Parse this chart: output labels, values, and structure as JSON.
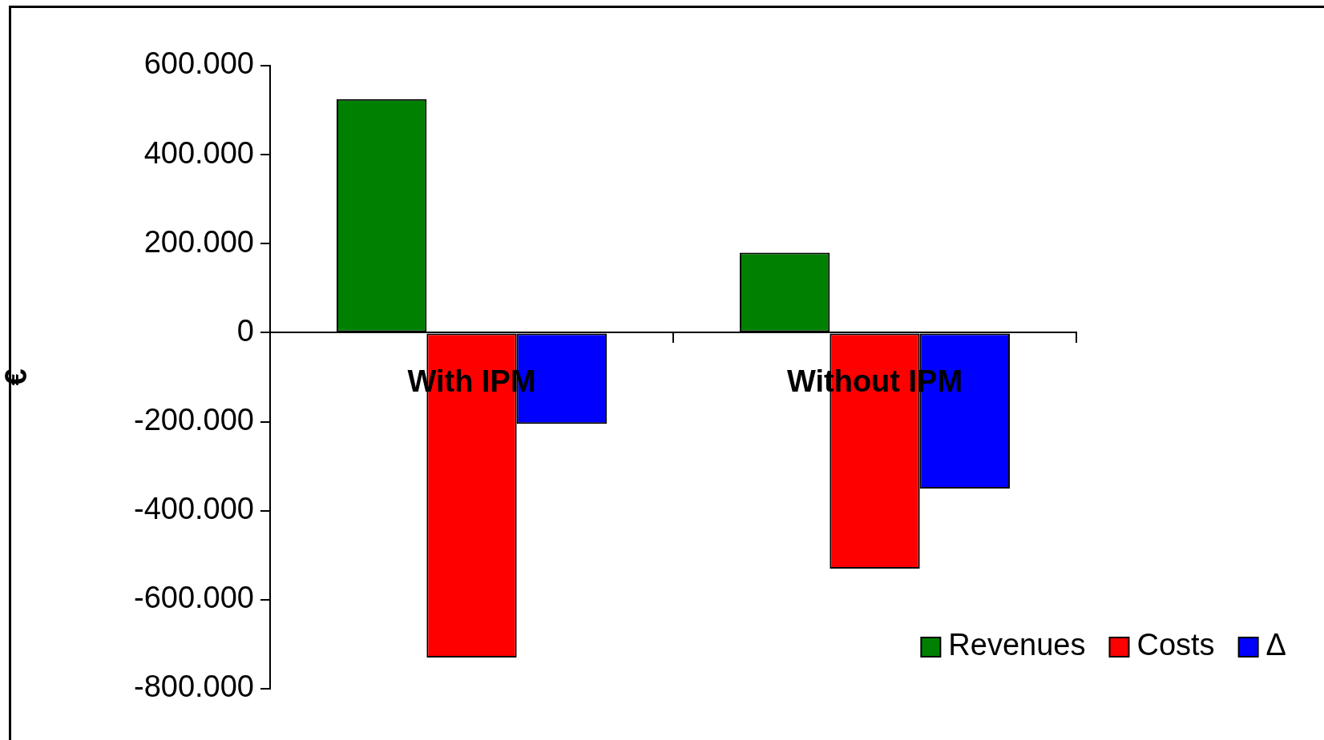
{
  "chart_data": {
    "type": "bar",
    "ylabel": "€",
    "categories": [
      "With IPM",
      "Without IPM"
    ],
    "series": [
      {
        "name": "Revenues",
        "color": "#008000",
        "values": [
          525000,
          180000
        ]
      },
      {
        "name": "Costs",
        "color": "#ff0000",
        "values": [
          -730000,
          -530000
        ]
      },
      {
        "name": "Δ",
        "color": "#0000ff",
        "values": [
          -205000,
          -350000
        ]
      }
    ],
    "ylim": [
      -800000,
      600000
    ],
    "yticks": [
      {
        "value": -800000,
        "label": "-800.000"
      },
      {
        "value": -600000,
        "label": "-600.000"
      },
      {
        "value": -400000,
        "label": "-400.000"
      },
      {
        "value": -200000,
        "label": "-200.000"
      },
      {
        "value": 0,
        "label": "0"
      },
      {
        "value": 200000,
        "label": "200.000"
      },
      {
        "value": 400000,
        "label": "400.000"
      },
      {
        "value": 600000,
        "label": "600.000"
      }
    ],
    "grid": false,
    "legend": "bottom right"
  }
}
